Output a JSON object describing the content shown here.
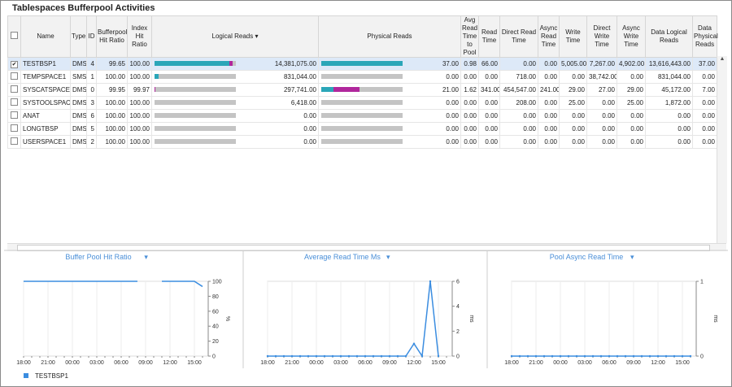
{
  "title": "Tablespaces Bufferpool Activities",
  "table": {
    "columns": [
      "Name",
      "Type",
      "ID",
      "Bufferpool Hit Ratio",
      "Index Hit Ratio",
      "Logical Reads",
      "Physical Reads",
      "Avg Read Time to Pool",
      "Read Time",
      "Direct Read Time",
      "Async Read Time",
      "Write Time",
      "Direct Write Time",
      "Async Write Time",
      "Data Logical Reads",
      "Data Physical Reads"
    ],
    "rows": [
      {
        "checked": true,
        "logical_bar": [
          92,
          4
        ],
        "physical_bar": [
          100,
          0
        ],
        "cells": [
          "TESTBSP1",
          "DMS",
          "4",
          "99.65",
          "100.00",
          "14,381,075.00",
          "37.00",
          "0.98",
          "66.00",
          "0.00",
          "0.00",
          "5,005.00",
          "7,267.00",
          "4,902.00",
          "13,616,443.00",
          "37.00"
        ]
      },
      {
        "checked": false,
        "logical_bar": [
          5,
          0
        ],
        "physical_bar": [
          0,
          0
        ],
        "cells": [
          "TEMPSPACE1",
          "SMS",
          "1",
          "100.00",
          "100.00",
          "831,044.00",
          "0.00",
          "0.00",
          "0.00",
          "718.00",
          "0.00",
          "0.00",
          "38,742.00",
          "0.00",
          "831,044.00",
          "0.00"
        ]
      },
      {
        "checked": false,
        "logical_bar": [
          0,
          1
        ],
        "physical_bar": [
          15,
          32
        ],
        "cells": [
          "SYSCATSPACE",
          "DMS",
          "0",
          "99.95",
          "99.97",
          "297,741.00",
          "21.00",
          "1.62",
          "341.00",
          "454,547.00",
          "241.00",
          "29.00",
          "27.00",
          "29.00",
          "45,172.00",
          "7.00"
        ]
      },
      {
        "checked": false,
        "logical_bar": [
          0,
          0
        ],
        "physical_bar": [
          0,
          0
        ],
        "cells": [
          "SYSTOOLSPACE",
          "DMS",
          "3",
          "100.00",
          "100.00",
          "6,418.00",
          "0.00",
          "0.00",
          "0.00",
          "208.00",
          "0.00",
          "25.00",
          "0.00",
          "25.00",
          "1,872.00",
          "0.00"
        ]
      },
      {
        "checked": false,
        "logical_bar": [
          0,
          0
        ],
        "physical_bar": [
          0,
          0
        ],
        "cells": [
          "ANAT",
          "DMS",
          "6",
          "100.00",
          "100.00",
          "0.00",
          "0.00",
          "0.00",
          "0.00",
          "0.00",
          "0.00",
          "0.00",
          "0.00",
          "0.00",
          "0.00",
          "0.00"
        ]
      },
      {
        "checked": false,
        "logical_bar": [
          0,
          0
        ],
        "physical_bar": [
          0,
          0
        ],
        "cells": [
          "LONGTBSP",
          "DMS",
          "5",
          "100.00",
          "100.00",
          "0.00",
          "0.00",
          "0.00",
          "0.00",
          "0.00",
          "0.00",
          "0.00",
          "0.00",
          "0.00",
          "0.00",
          "0.00"
        ]
      },
      {
        "checked": false,
        "logical_bar": [
          0,
          0
        ],
        "physical_bar": [
          0,
          0
        ],
        "cells": [
          "USERSPACE1",
          "DMS",
          "2",
          "100.00",
          "100.00",
          "0.00",
          "0.00",
          "0.00",
          "0.00",
          "0.00",
          "0.00",
          "0.00",
          "0.00",
          "0.00",
          "0.00",
          "0.00"
        ]
      }
    ]
  },
  "chart_data": [
    {
      "type": "line",
      "title": "Buffer Pool Hit Ratio",
      "y_label": "%",
      "categories": [
        "18:00",
        null,
        null,
        "21:00",
        null,
        null,
        "00:00",
        null,
        null,
        "03:00",
        null,
        null,
        "06:00",
        null,
        null,
        "09:00",
        null,
        null,
        "12:00",
        null,
        null,
        "15:00",
        null
      ],
      "series": [
        {
          "name": "TESTBSP1",
          "color": "#3b8de0",
          "values": [
            100,
            100,
            100,
            100,
            100,
            100,
            100,
            100,
            100,
            100,
            100,
            100,
            100,
            100,
            100,
            null,
            null,
            100,
            100,
            100,
            100,
            100,
            93
          ]
        }
      ],
      "ylim": [
        0,
        100
      ],
      "yticks": [
        0,
        20,
        40,
        60,
        80,
        100
      ],
      "markers": false
    },
    {
      "type": "line",
      "title": "Average Read Time Ms",
      "y_label": "ms",
      "categories": [
        "18:00",
        null,
        null,
        "21:00",
        null,
        null,
        "00:00",
        null,
        null,
        "03:00",
        null,
        null,
        "06:00",
        null,
        null,
        "09:00",
        null,
        null,
        "12:00",
        null,
        null,
        "15:00",
        null
      ],
      "series": [
        {
          "color": "#3b8de0",
          "values": [
            0,
            0,
            0,
            0,
            0,
            0,
            0,
            0,
            0,
            0,
            0,
            0,
            0,
            0,
            0,
            0,
            0,
            0,
            1,
            0,
            6,
            0,
            null
          ]
        }
      ],
      "ylim": [
        0,
        6
      ],
      "yticks": [
        0,
        2,
        4,
        6
      ],
      "markers": true
    },
    {
      "type": "line",
      "title": "Pool Async Read Time",
      "y_label": "ms",
      "categories": [
        "18:00",
        null,
        null,
        "21:00",
        null,
        null,
        "00:00",
        null,
        null,
        "03:00",
        null,
        null,
        "06:00",
        null,
        null,
        "09:00",
        null,
        null,
        "12:00",
        null,
        null,
        "15:00",
        null
      ],
      "series": [
        {
          "color": "#3b8de0",
          "values": [
            0,
            0,
            0,
            0,
            0,
            0,
            0,
            0,
            0,
            0,
            0,
            0,
            0,
            0,
            0,
            0,
            0,
            0,
            0,
            0,
            0,
            0,
            0
          ]
        }
      ],
      "ylim": [
        0,
        1
      ],
      "yticks": [
        0,
        1
      ],
      "markers": true
    }
  ]
}
